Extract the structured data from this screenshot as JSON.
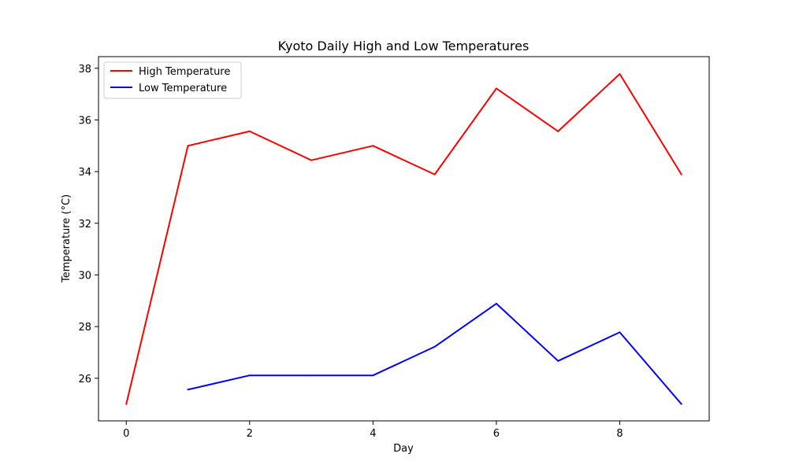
{
  "chart_data": {
    "type": "line",
    "title": "Kyoto Daily High and Low Temperatures",
    "xlabel": "Day",
    "ylabel": "Temperature (°C)",
    "xlim": [
      -0.45,
      9.45
    ],
    "ylim": [
      24.35,
      38.45
    ],
    "xticks": [
      0,
      2,
      4,
      6,
      8
    ],
    "yticks": [
      26,
      28,
      30,
      32,
      34,
      36,
      38
    ],
    "grid": false,
    "legend_position": "upper left",
    "series": [
      {
        "name": "High Temperature",
        "color": "#ff0000",
        "x": [
          0,
          1,
          2,
          3,
          4,
          5,
          6,
          7,
          8,
          9
        ],
        "values": [
          25.0,
          35.0,
          35.56,
          34.44,
          35.0,
          33.89,
          37.22,
          35.56,
          37.78,
          33.89
        ]
      },
      {
        "name": "Low Temperature",
        "color": "#0000ff",
        "x": [
          1,
          2,
          3,
          4,
          5,
          6,
          7,
          8,
          9
        ],
        "values": [
          25.56,
          26.11,
          26.11,
          26.11,
          27.22,
          28.89,
          26.67,
          27.78,
          25.0
        ]
      }
    ]
  }
}
